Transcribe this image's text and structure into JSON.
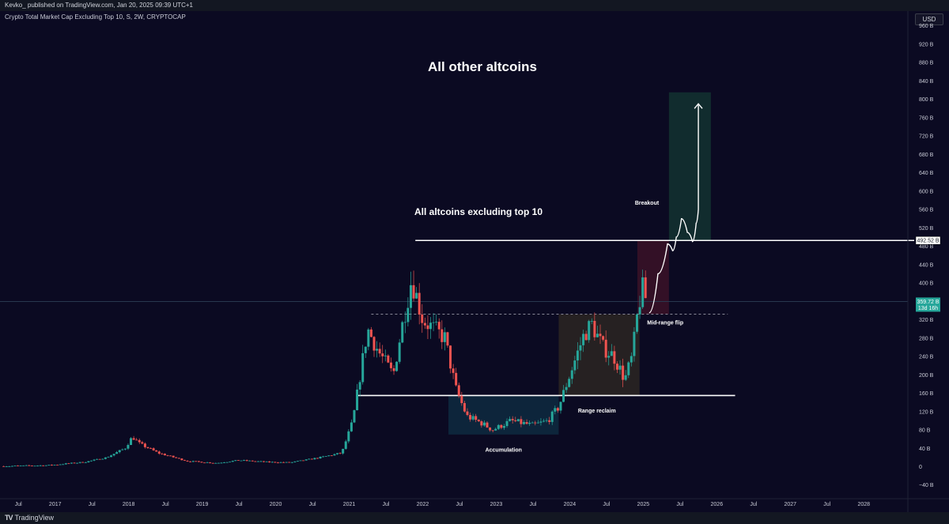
{
  "header": {
    "publisher_line": "Kevko_ published on TradingView.com, Jan 20, 2025 09:39 UTC+1",
    "symbol_line": "Crypto Total Market Cap Excluding Top 10, S, 2W, CRYPTOCAP",
    "currency": "USD"
  },
  "footer": {
    "logo_mark": "TV",
    "logo_text": "TradingView"
  },
  "colors": {
    "background": "#0b0a22",
    "up_candle": "#26a69a",
    "down_candle": "#ef5350",
    "accumulation_box": "#0e2a40",
    "range_box": "#2b2622",
    "red_box": "#3b1227",
    "breakout_box": "#133330",
    "current_price_tag": "#26a69a"
  },
  "chart_data": {
    "type": "candlestick",
    "title": "All other altcoins",
    "subtitle": "All altcoins excluding top 10",
    "xlabel": "",
    "ylabel": "",
    "ylim": [
      -50,
      1000
    ],
    "xlim": [
      2016.25,
      2028.6
    ],
    "y_scale": "linear",
    "grid": false,
    "x_ticks": [
      {
        "label": "Jul",
        "x": 2016.5
      },
      {
        "label": "2017",
        "x": 2017.0
      },
      {
        "label": "Jul",
        "x": 2017.5
      },
      {
        "label": "2018",
        "x": 2018.0
      },
      {
        "label": "Jul",
        "x": 2018.5
      },
      {
        "label": "2019",
        "x": 2019.0
      },
      {
        "label": "Jul",
        "x": 2019.5
      },
      {
        "label": "2020",
        "x": 2020.0
      },
      {
        "label": "Jul",
        "x": 2020.5
      },
      {
        "label": "2021",
        "x": 2021.0
      },
      {
        "label": "Jul",
        "x": 2021.5
      },
      {
        "label": "2022",
        "x": 2022.0
      },
      {
        "label": "Jul",
        "x": 2022.5
      },
      {
        "label": "2023",
        "x": 2023.0
      },
      {
        "label": "Jul",
        "x": 2023.5
      },
      {
        "label": "2024",
        "x": 2024.0
      },
      {
        "label": "Jul",
        "x": 2024.5
      },
      {
        "label": "2025",
        "x": 2025.0
      },
      {
        "label": "Jul",
        "x": 2025.5
      },
      {
        "label": "2026",
        "x": 2026.0
      },
      {
        "label": "Jul",
        "x": 2026.5
      },
      {
        "label": "2027",
        "x": 2027.0
      },
      {
        "label": "Jul",
        "x": 2027.5
      },
      {
        "label": "2028",
        "x": 2028.0
      }
    ],
    "y_ticks": [
      {
        "label": "960 B",
        "y": 960
      },
      {
        "label": "920 B",
        "y": 920
      },
      {
        "label": "880 B",
        "y": 880
      },
      {
        "label": "840 B",
        "y": 840
      },
      {
        "label": "800 B",
        "y": 800
      },
      {
        "label": "760 B",
        "y": 760
      },
      {
        "label": "720 B",
        "y": 720
      },
      {
        "label": "680 B",
        "y": 680
      },
      {
        "label": "640 B",
        "y": 640
      },
      {
        "label": "600 B",
        "y": 600
      },
      {
        "label": "560 B",
        "y": 560
      },
      {
        "label": "520 B",
        "y": 520
      },
      {
        "label": "480 B",
        "y": 480
      },
      {
        "label": "440 B",
        "y": 440
      },
      {
        "label": "400 B",
        "y": 400
      },
      {
        "label": "320 B",
        "y": 320
      },
      {
        "label": "280 B",
        "y": 280
      },
      {
        "label": "240 B",
        "y": 240
      },
      {
        "label": "200 B",
        "y": 200
      },
      {
        "label": "160 B",
        "y": 160
      },
      {
        "label": "120 B",
        "y": 120
      },
      {
        "label": "80 B",
        "y": 80
      },
      {
        "label": "40 B",
        "y": 40
      },
      {
        "label": "0",
        "y": 0
      },
      {
        "label": "−40 B",
        "y": -40
      }
    ],
    "anchors": [
      [
        2016.3,
        1
      ],
      [
        2016.9,
        3
      ],
      [
        2017.4,
        10
      ],
      [
        2017.7,
        20
      ],
      [
        2017.95,
        40
      ],
      [
        2018.05,
        65
      ],
      [
        2018.15,
        50
      ],
      [
        2018.4,
        30
      ],
      [
        2018.8,
        12
      ],
      [
        2019.2,
        8
      ],
      [
        2019.5,
        14
      ],
      [
        2019.9,
        10
      ],
      [
        2020.2,
        9
      ],
      [
        2020.6,
        20
      ],
      [
        2020.9,
        30
      ],
      [
        2021.05,
        100
      ],
      [
        2021.25,
        300
      ],
      [
        2021.4,
        250
      ],
      [
        2021.6,
        200
      ],
      [
        2021.7,
        290
      ],
      [
        2021.85,
        410
      ],
      [
        2022.0,
        320
      ],
      [
        2022.3,
        280
      ],
      [
        2022.45,
        170
      ],
      [
        2022.6,
        110
      ],
      [
        2022.8,
        95
      ],
      [
        2022.95,
        80
      ],
      [
        2023.2,
        100
      ],
      [
        2023.5,
        90
      ],
      [
        2023.7,
        100
      ],
      [
        2023.85,
        130
      ],
      [
        2024.0,
        200
      ],
      [
        2024.2,
        290
      ],
      [
        2024.3,
        310
      ],
      [
        2024.45,
        260
      ],
      [
        2024.6,
        240
      ],
      [
        2024.75,
        190
      ],
      [
        2024.85,
        240
      ],
      [
        2024.92,
        330
      ],
      [
        2024.98,
        390
      ],
      [
        2025.05,
        360
      ]
    ],
    "levels": {
      "high": {
        "y": 492.52,
        "x_start": 2021.9,
        "label": "492.52 B"
      },
      "mid_dashed": {
        "y": 332,
        "x_start": 2021.3,
        "x_end": 2026.15
      },
      "range_low": {
        "y": 155,
        "x_start": 2021.1,
        "x_end": 2026.25
      },
      "current_price": {
        "y": 359.72,
        "label": "359.72 B",
        "countdown": "13d 16h"
      }
    },
    "zones": [
      {
        "name": "accumulation",
        "x0": 2022.35,
        "x1": 2023.85,
        "y0": 70,
        "y1": 155
      },
      {
        "name": "range",
        "x0": 2023.85,
        "x1": 2024.95,
        "y0": 155,
        "y1": 332
      },
      {
        "name": "red",
        "x0": 2024.92,
        "x1": 2025.35,
        "y0": 332,
        "y1": 492.52
      },
      {
        "name": "breakout",
        "x0": 2025.35,
        "x1": 2025.92,
        "y0": 492.52,
        "y1": 815
      }
    ],
    "projection": [
      [
        2025.08,
        335
      ],
      [
        2025.2,
        420
      ],
      [
        2025.33,
        485
      ],
      [
        2025.4,
        470
      ],
      [
        2025.45,
        500
      ],
      [
        2025.52,
        540
      ],
      [
        2025.6,
        510
      ],
      [
        2025.67,
        490
      ],
      [
        2025.72,
        530
      ],
      [
        2025.75,
        560
      ],
      [
        2025.75,
        790
      ]
    ],
    "annotations": [
      {
        "text": "Breakout",
        "x": 2025.05,
        "y": 570
      },
      {
        "text": "Mid-range flip",
        "x": 2025.3,
        "y": 310
      },
      {
        "text": "Range reclaim",
        "x": 2024.37,
        "y": 118
      },
      {
        "text": "Accumulation",
        "x": 2023.1,
        "y": 33
      }
    ]
  }
}
